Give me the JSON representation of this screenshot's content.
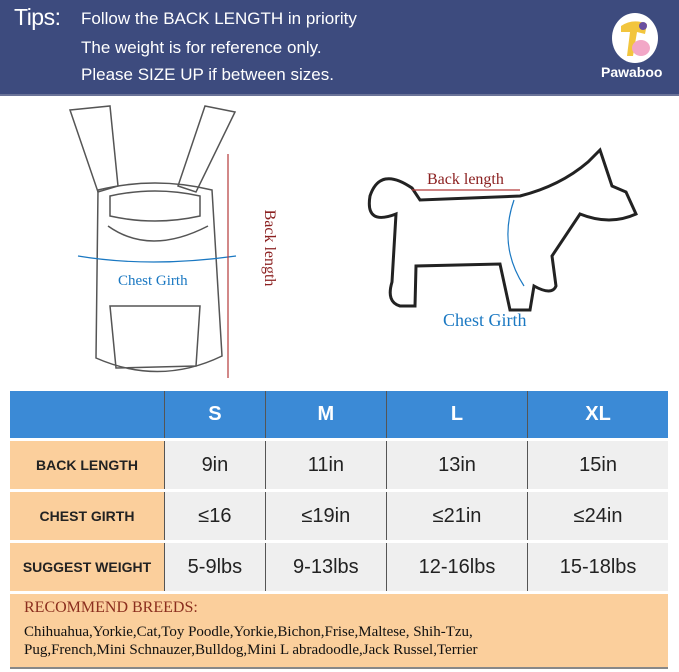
{
  "header": {
    "tips_label": "Tips:",
    "tips": [
      "Follow the BACK LENGTH in priority",
      "The weight is for reference only.",
      "Please SIZE UP if between sizes."
    ],
    "brand": "Pawaboo",
    "background_color": "#3d4b7e"
  },
  "illustration": {
    "carrier_chest_label": "Chest Girth",
    "carrier_back_label": "Back length",
    "dog_back_label": "Back length",
    "dog_chest_label": "Chest Girth"
  },
  "size_table": {
    "columns": [
      "S",
      "M",
      "L",
      "XL"
    ],
    "rows": [
      {
        "label": "BACK LENGTH",
        "values": [
          "9in",
          "11in",
          "13in",
          "15in"
        ]
      },
      {
        "label": "CHEST GIRTH",
        "values": [
          "≤16",
          "≤19in",
          "≤21in",
          "≤24in"
        ]
      },
      {
        "label": "SUGGEST WEIGHT",
        "values": [
          "5-9lbs",
          "9-13lbs",
          "12-16lbs",
          "15-18lbs"
        ]
      }
    ],
    "header_color": "#3b8ad6",
    "row_label_color": "#fbcf9c"
  },
  "breeds": {
    "title": "RECOMMEND BREEDS:",
    "lines": [
      "Chihuahua,Yorkie,Cat,Toy Poodle,Yorkie,Bichon,Frise,Maltese, Shih-Tzu,",
      "Pug,French,Mini Schnauzer,Bulldog,Mini L abradoodle,Jack Russel,Terrier"
    ]
  }
}
